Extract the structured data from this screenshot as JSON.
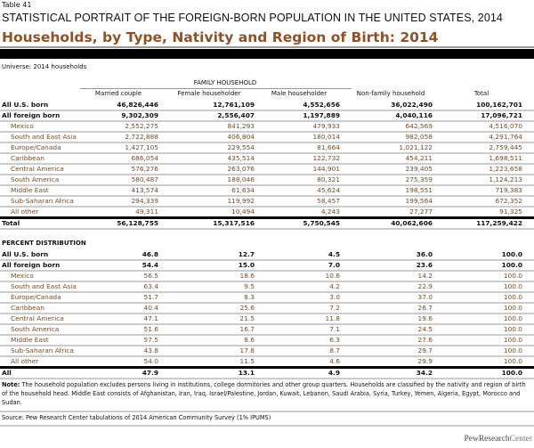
{
  "header": {
    "table_number": "Table 41",
    "title": "STATISTICAL PORTRAIT OF THE FOREIGN-BORN POPULATION IN THE UNITED STATES, 2014",
    "subtitle": "Households, by Type, Nativity and Region of Birth: 2014",
    "universe": "Universe: 2014 households"
  },
  "columns": {
    "group_label": "FAMILY HOUSEHOLD",
    "headers": [
      "Married couple",
      "Female householder",
      "Male householder",
      "Non-family household",
      "Total"
    ]
  },
  "counts": {
    "rows": [
      {
        "label": "All U.S. born",
        "type": "bold",
        "values": [
          "46,826,446",
          "12,761,109",
          "4,552,656",
          "36,022,490",
          "100,162,701"
        ]
      },
      {
        "label": "All foreign born",
        "type": "bold",
        "values": [
          "9,302,309",
          "2,556,407",
          "1,197,889",
          "4,040,116",
          "17,096,721"
        ]
      },
      {
        "label": "Mexico",
        "type": "sub",
        "values": [
          "2,552,275",
          "841,293",
          "479,933",
          "642,569",
          "4,516,070"
        ]
      },
      {
        "label": "South and East Asia",
        "type": "sub",
        "values": [
          "2,722,888",
          "406,804",
          "180,014",
          "982,058",
          "4,291,764"
        ]
      },
      {
        "label": "Europe/Canada",
        "type": "sub",
        "values": [
          "1,427,105",
          "229,554",
          "81,664",
          "1,021,122",
          "2,759,445"
        ]
      },
      {
        "label": "Caribbean",
        "type": "sub",
        "values": [
          "686,054",
          "435,514",
          "122,732",
          "454,211",
          "1,698,511"
        ]
      },
      {
        "label": "Central America",
        "type": "sub",
        "values": [
          "576,276",
          "263,076",
          "144,901",
          "239,405",
          "1,223,658"
        ]
      },
      {
        "label": "South America",
        "type": "sub",
        "values": [
          "580,487",
          "188,046",
          "80,321",
          "275,359",
          "1,124,213"
        ]
      },
      {
        "label": "Middle East",
        "type": "sub",
        "values": [
          "413,574",
          "61,634",
          "45,624",
          "198,551",
          "719,383"
        ]
      },
      {
        "label": "Sub-Saharan Africa",
        "type": "sub",
        "values": [
          "294,339",
          "119,992",
          "58,457",
          "199,564",
          "672,352"
        ]
      },
      {
        "label": "All other",
        "type": "sub",
        "values": [
          "49,311",
          "10,494",
          "4,243",
          "27,277",
          "91,325"
        ]
      },
      {
        "label": "Total",
        "type": "total",
        "values": [
          "56,128,755",
          "15,317,516",
          "5,750,545",
          "40,062,606",
          "117,259,422"
        ]
      }
    ]
  },
  "percent": {
    "heading": "PERCENT DISTRIBUTION",
    "rows": [
      {
        "label": "All U.S. born",
        "type": "bold",
        "values": [
          "46.8",
          "12.7",
          "4.5",
          "36.0",
          "100.0"
        ]
      },
      {
        "label": "All foreign born",
        "type": "bold",
        "values": [
          "54.4",
          "15.0",
          "7.0",
          "23.6",
          "100.0"
        ]
      },
      {
        "label": "Mexico",
        "type": "sub",
        "values": [
          "56.5",
          "18.6",
          "10.6",
          "14.2",
          "100.0"
        ]
      },
      {
        "label": "South and East Asia",
        "type": "sub",
        "values": [
          "63.4",
          "9.5",
          "4.2",
          "22.9",
          "100.0"
        ]
      },
      {
        "label": "Europe/Canada",
        "type": "sub",
        "values": [
          "51.7",
          "8.3",
          "3.0",
          "37.0",
          "100.0"
        ]
      },
      {
        "label": "Caribbean",
        "type": "sub",
        "values": [
          "40.4",
          "25.6",
          "7.2",
          "26.7",
          "100.0"
        ]
      },
      {
        "label": "Central America",
        "type": "sub",
        "values": [
          "47.1",
          "21.5",
          "11.8",
          "19.6",
          "100.0"
        ]
      },
      {
        "label": "South America",
        "type": "sub",
        "values": [
          "51.6",
          "16.7",
          "7.1",
          "24.5",
          "100.0"
        ]
      },
      {
        "label": "Middle East",
        "type": "sub",
        "values": [
          "57.5",
          "8.6",
          "6.3",
          "27.6",
          "100.0"
        ]
      },
      {
        "label": "Sub-Saharan Africa",
        "type": "sub",
        "values": [
          "43.8",
          "17.8",
          "8.7",
          "29.7",
          "100.0"
        ]
      },
      {
        "label": "All other",
        "type": "sub",
        "values": [
          "54.0",
          "11.5",
          "4.6",
          "29.9",
          "100.0"
        ]
      },
      {
        "label": "All",
        "type": "total",
        "values": [
          "47.9",
          "13.1",
          "4.9",
          "34.2",
          "100.0"
        ]
      }
    ]
  },
  "footer": {
    "note_label": "Note:",
    "note_text": " The household population excludes persons living in institutions, college dormitories and other group quarters. Households are classified by the nativity and region of birth of the household head. Middle East consists of Afghanistan, Iran, Iraq, Israel/Palestine, Jordan, Kuwait, Lebanon, Saudi Arabia, Syria, Turkey, Yemen, Algeria, Egypt, Morocco and  Sudan.",
    "source": "Source: Pew Research Center tabulations of 2014 American Community Survey (1% IPUMS)",
    "logo_a": "PewResearch",
    "logo_b": "Center"
  },
  "colors": {
    "subtitle": "#8c5228",
    "region_text": "#7a4a22",
    "bar": "#000000"
  }
}
